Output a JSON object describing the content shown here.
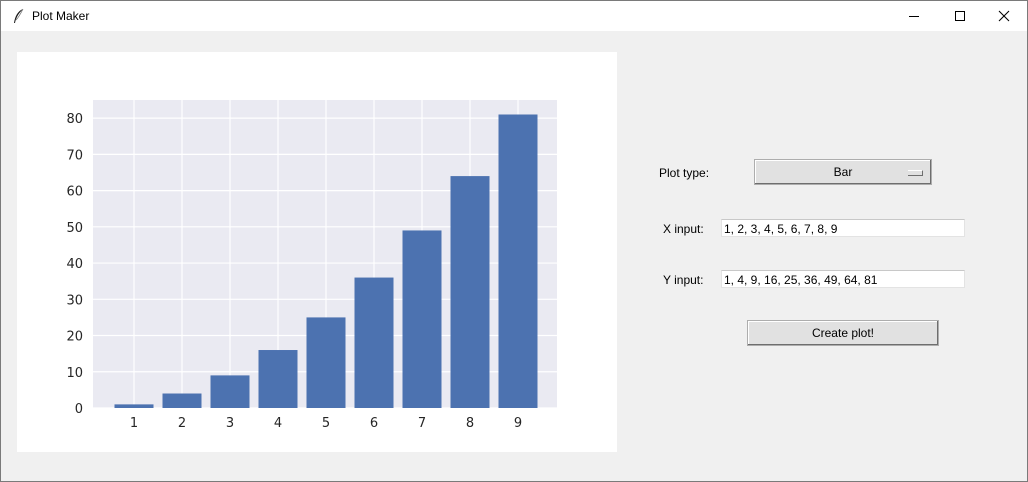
{
  "window": {
    "title": "Plot Maker"
  },
  "icons": {
    "app": "feather-icon",
    "minimize": "minimize-icon",
    "maximize": "maximize-icon",
    "close": "close-icon"
  },
  "controls": {
    "plot_type_label": "Plot type:",
    "plot_type_value": "Bar",
    "x_input_label": "X input:",
    "x_input_value": "1, 2, 3, 4, 5, 6, 7, 8, 9",
    "y_input_label": "Y input:",
    "y_input_value": "1, 4, 9, 16, 25, 36, 49, 64, 81",
    "create_button": "Create plot!"
  },
  "colors": {
    "bar": "#4c72b0",
    "plot_bg": "#eaeaf2",
    "grid": "#ffffff"
  },
  "chart_data": {
    "type": "bar",
    "categories": [
      "1",
      "2",
      "3",
      "4",
      "5",
      "6",
      "7",
      "8",
      "9"
    ],
    "values": [
      1,
      4,
      9,
      16,
      25,
      36,
      49,
      64,
      81
    ],
    "yticks": [
      0,
      10,
      20,
      30,
      40,
      50,
      60,
      70,
      80
    ],
    "ylim": [
      0,
      85
    ],
    "title": "",
    "xlabel": "",
    "ylabel": "",
    "grid": true
  }
}
